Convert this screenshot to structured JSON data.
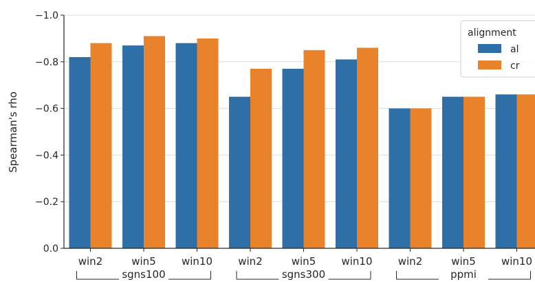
{
  "chart_data": {
    "type": "bar",
    "ylabel": "Spearman's rho",
    "ylim": [
      0.0,
      -1.0
    ],
    "y_axis_inverted": true,
    "yticks": [
      0.0,
      -0.2,
      -0.4,
      -0.6,
      -0.8,
      -1.0
    ],
    "ytick_labels": [
      "0.0",
      "−0.2",
      "−0.4",
      "−0.6",
      "−0.8",
      "−1.0"
    ],
    "grid": "horizontal",
    "categories": [
      "win2",
      "win5",
      "win10",
      "win2",
      "win5",
      "win10",
      "win2",
      "win5",
      "win10"
    ],
    "groups": [
      {
        "label": "sgns100",
        "categories": [
          0,
          1,
          2
        ]
      },
      {
        "label": "sgns300",
        "categories": [
          3,
          4,
          5
        ]
      },
      {
        "label": "ppmi",
        "categories": [
          6,
          7,
          8
        ]
      }
    ],
    "series": [
      {
        "name": "al",
        "color": "#2f6fa8",
        "values": [
          -0.82,
          -0.87,
          -0.88,
          -0.65,
          -0.77,
          -0.81,
          -0.6,
          -0.65,
          -0.66
        ]
      },
      {
        "name": "cr",
        "color": "#e8822b",
        "values": [
          -0.88,
          -0.91,
          -0.9,
          -0.77,
          -0.85,
          -0.86,
          -0.6,
          -0.65,
          -0.66
        ]
      }
    ],
    "legend": {
      "title": "alignment",
      "placement": "top-right"
    }
  }
}
